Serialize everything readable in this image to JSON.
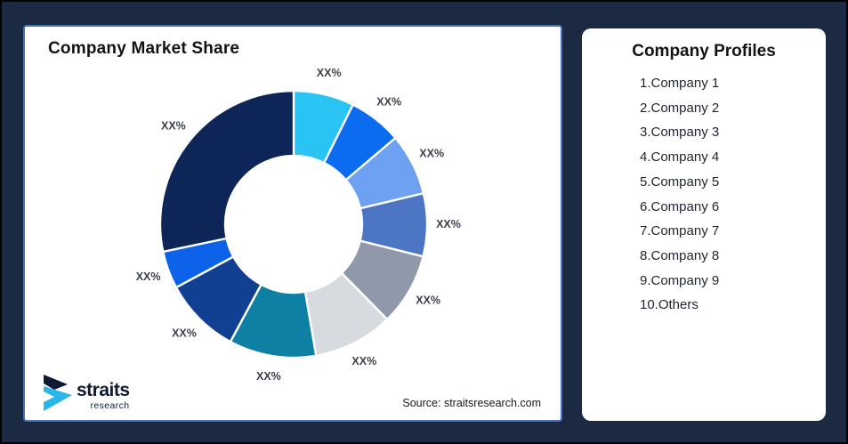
{
  "window": {
    "background_color": "#1C2942",
    "outer_border_color": "#000000"
  },
  "left_panel": {
    "title": "Company Market Share",
    "border_color": "#4A70C4",
    "source_note": "Source: straitsresearch.com",
    "logo": {
      "name": "straits",
      "subname": "research",
      "mark_navy": "#101A33",
      "mark_cyan": "#29B6E8"
    }
  },
  "right_panel": {
    "title": "Company Profiles",
    "items": [
      "1.Company 1",
      "2.Company 2",
      "3.Company 3",
      "4.Company 4",
      "5.Company 5",
      "6.Company 6",
      "7.Company 7",
      "8.Company 8",
      "9.Company 9",
      "10.Others"
    ]
  },
  "chart_data": {
    "type": "pie",
    "variant": "donut",
    "title": "Company Market Share",
    "start_angle_deg": 0,
    "direction": "clockwise",
    "inner_radius_ratio": 0.513,
    "gap_color": "#FFFFFF",
    "label_color": "#3A414D",
    "legend_position": "none",
    "segments": [
      {
        "label": "XX%",
        "sweep_deg": 26.4,
        "percent_est": 7.3,
        "color": "#29C4F3"
      },
      {
        "label": "XX%",
        "sweep_deg": 23.3,
        "percent_est": 6.5,
        "color": "#0B6CF0"
      },
      {
        "label": "XX%",
        "sweep_deg": 26.9,
        "percent_est": 7.5,
        "color": "#6FA1F2"
      },
      {
        "label": "XX%",
        "sweep_deg": 27.4,
        "percent_est": 7.6,
        "color": "#4C76C3"
      },
      {
        "label": "XX%",
        "sweep_deg": 31.5,
        "percent_est": 8.8,
        "color": "#9099A9"
      },
      {
        "label": "XX%",
        "sweep_deg": 34.8,
        "percent_est": 9.7,
        "color": "#D7DBE0"
      },
      {
        "label": "XX%",
        "sweep_deg": 38.0,
        "percent_est": 10.6,
        "color": "#0E80A4"
      },
      {
        "label": "XX%",
        "sweep_deg": 33.4,
        "percent_est": 9.3,
        "color": "#113F92"
      },
      {
        "label": "XX%",
        "sweep_deg": 16.4,
        "percent_est": 4.6,
        "color": "#0C63EA"
      },
      {
        "label": "XX%",
        "sweep_deg": 101.9,
        "percent_est": 28.1,
        "color": "#0D2557"
      }
    ]
  }
}
